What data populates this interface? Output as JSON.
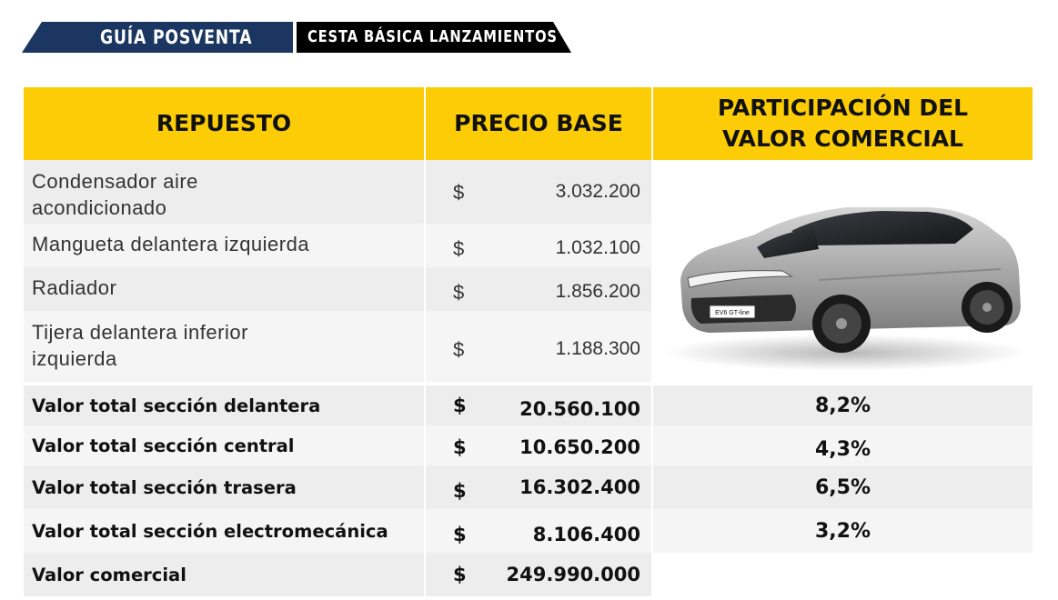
{
  "header": {
    "guide_label": "GUÍA POSVENTA",
    "section_label": "CESTA BÁSICA LANZAMIENTOS",
    "colors": {
      "navy": "#1b3761",
      "black": "#000000"
    }
  },
  "table": {
    "columns": [
      "REPUESTO",
      "PRECIO BASE",
      "PARTICIPACIÓN DEL VALOR COMERCIAL"
    ],
    "header_color": "#fccd06",
    "parts": [
      {
        "name": "Condensador aire acondicionado",
        "currency": "$",
        "price": "3.032.200"
      },
      {
        "name": "Mangueta delantera izquierda",
        "currency": "$",
        "price": "1.032.100"
      },
      {
        "name": "Radiador",
        "currency": "$",
        "price": "1.856.200"
      },
      {
        "name": "Tijera delantera inferior izquierda",
        "currency": "$",
        "price": "1.188.300"
      }
    ],
    "totals": [
      {
        "name": "Valor total sección delantera",
        "currency": "$",
        "price": "20.560.100",
        "share": "8,2%"
      },
      {
        "name": "Valor total sección central",
        "currency": "$",
        "price": "10.650.200",
        "share": "4,3%"
      },
      {
        "name": "Valor total sección trasera",
        "currency": "$",
        "price": "16.302.400",
        "share": "6,5%"
      },
      {
        "name": "Valor total sección electromecánica",
        "currency": "$",
        "price": "8.106.400",
        "share": "3,2%"
      }
    ],
    "commercial": {
      "name": "Valor comercial",
      "currency": "$",
      "price": "249.990.000"
    }
  },
  "car_image": {
    "plate_text": "EV6 GT-line",
    "icon": "car-photo"
  }
}
